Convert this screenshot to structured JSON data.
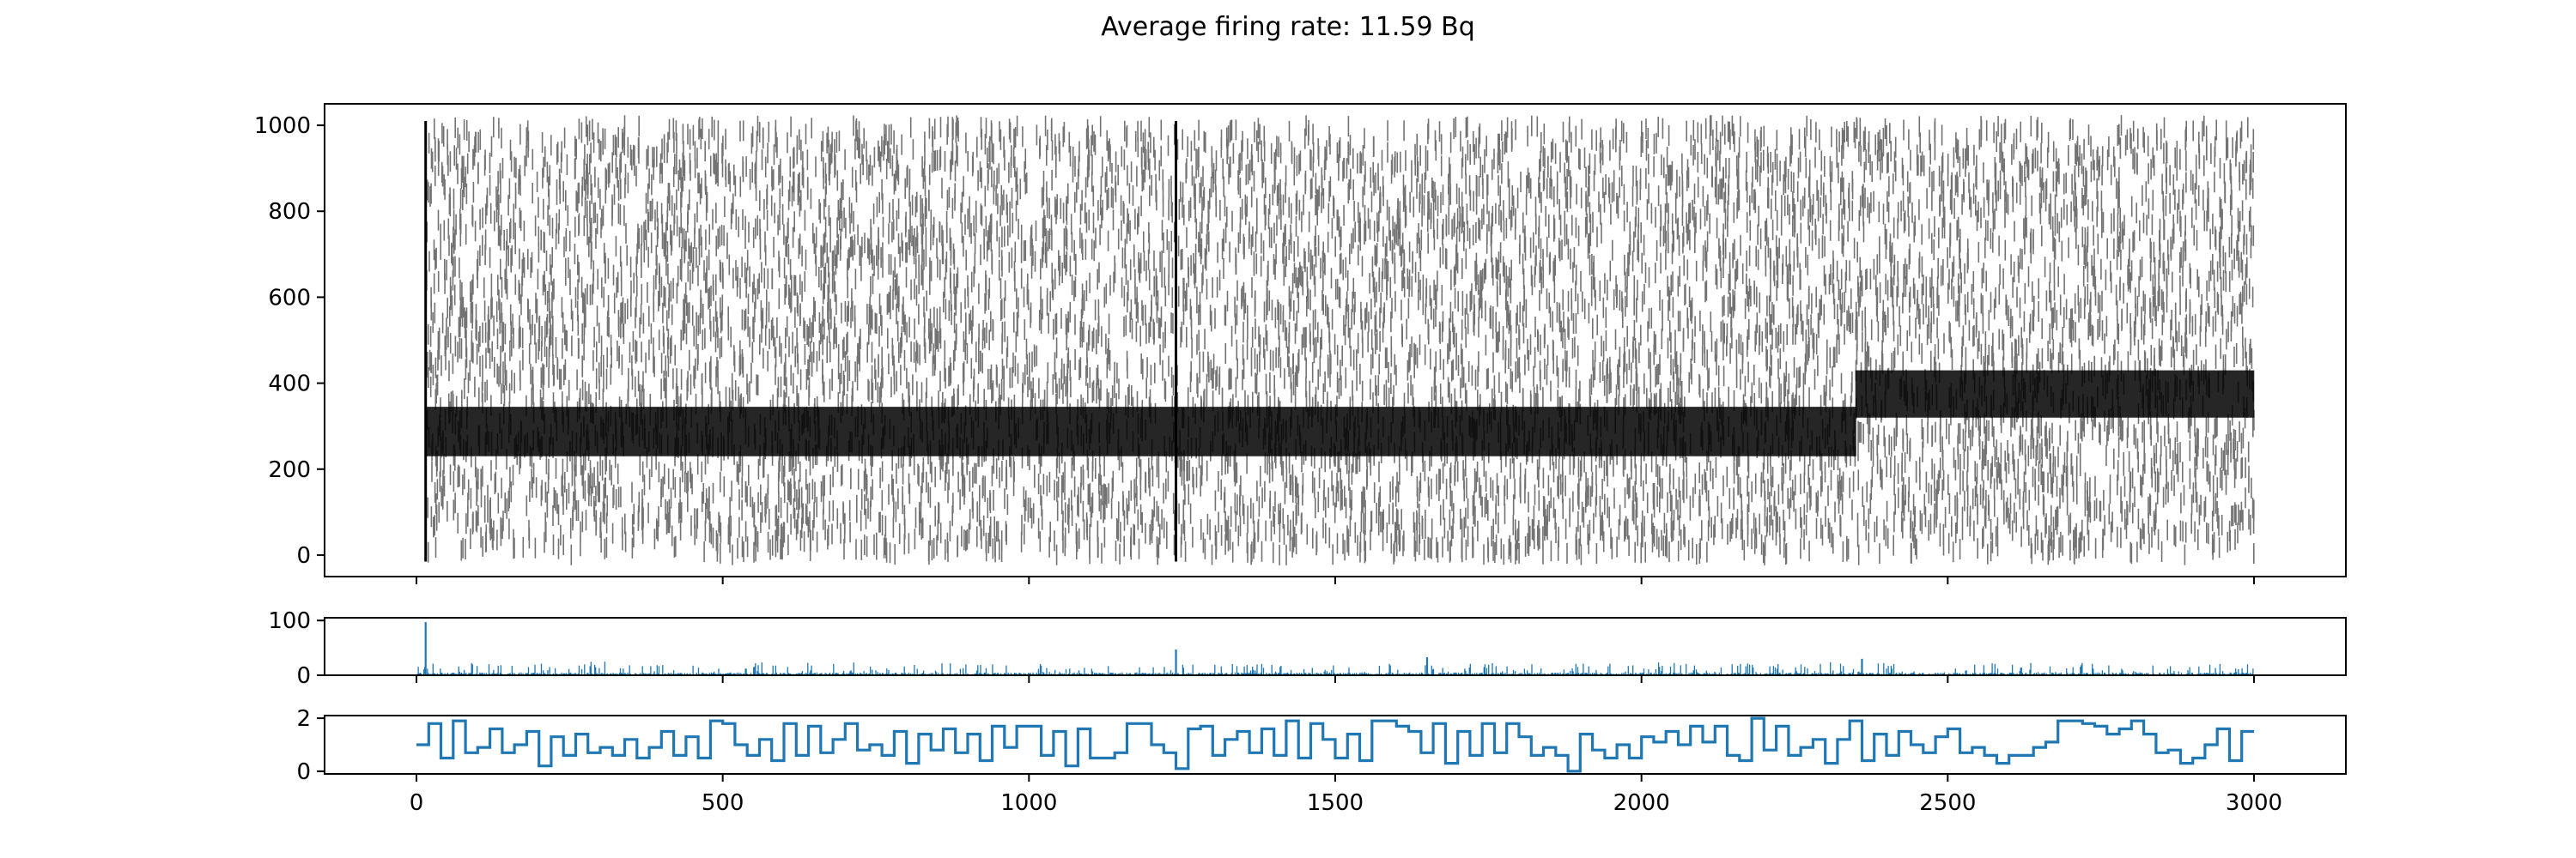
{
  "title": "Average firing rate: 11.59 Bq",
  "chart_data": [
    {
      "type": "scatter",
      "name": "raster",
      "xlim": [
        -150,
        3150
      ],
      "ylim": [
        -50,
        1050
      ],
      "yticks": [
        0,
        200,
        400,
        600,
        800,
        1000
      ],
      "xticks": [
        0,
        500,
        1000,
        1500,
        2000,
        2500,
        3000
      ],
      "xtick_labels_shown": false,
      "marker": "vertical-line",
      "color": "#000000",
      "grid": false,
      "n_neurons": 1000,
      "x_range": [
        0,
        3000
      ],
      "bands": [
        {
          "x": [
            15,
            2350
          ],
          "y": [
            230,
            345
          ]
        },
        {
          "x": [
            2350,
            3000
          ],
          "y": [
            320,
            430
          ]
        }
      ],
      "vertical_bursts_x": [
        15,
        1240
      ]
    },
    {
      "type": "bar",
      "name": "population-count",
      "xlim": [
        -150,
        3150
      ],
      "ylim": [
        0,
        105
      ],
      "yticks": [
        0,
        100
      ],
      "xticks": [
        0,
        500,
        1000,
        1500,
        2000,
        2500,
        3000
      ],
      "xtick_labels_shown": false,
      "color": "#1f77b4",
      "grid": false,
      "peaks": [
        {
          "x": 15,
          "y": 97
        },
        {
          "x": 1240,
          "y": 47
        },
        {
          "x": 1650,
          "y": 33
        },
        {
          "x": 2360,
          "y": 30
        }
      ],
      "baseline_range": [
        5,
        20
      ]
    },
    {
      "type": "line",
      "name": "rate-step",
      "drawstyle": "steps-post",
      "xlim": [
        -150,
        3150
      ],
      "ylim": [
        -0.1,
        2.1
      ],
      "yticks": [
        0,
        2
      ],
      "xticks": [
        0,
        500,
        1000,
        1500,
        2000,
        2500,
        3000
      ],
      "color": "#1f77b4",
      "grid": false,
      "x": [
        0,
        20,
        40,
        60,
        80,
        100,
        120,
        140,
        160,
        180,
        200,
        220,
        240,
        260,
        280,
        300,
        320,
        340,
        360,
        380,
        400,
        420,
        440,
        460,
        480,
        500,
        520,
        540,
        560,
        580,
        600,
        620,
        640,
        660,
        680,
        700,
        720,
        740,
        760,
        780,
        800,
        820,
        840,
        860,
        880,
        900,
        920,
        940,
        960,
        980,
        1000,
        1020,
        1040,
        1060,
        1080,
        1100,
        1120,
        1140,
        1160,
        1180,
        1200,
        1220,
        1240,
        1260,
        1280,
        1300,
        1320,
        1340,
        1360,
        1380,
        1400,
        1420,
        1440,
        1460,
        1480,
        1500,
        1520,
        1540,
        1560,
        1580,
        1600,
        1620,
        1640,
        1660,
        1680,
        1700,
        1720,
        1740,
        1760,
        1780,
        1800,
        1820,
        1840,
        1860,
        1880,
        1900,
        1920,
        1940,
        1960,
        1980,
        2000,
        2020,
        2040,
        2060,
        2080,
        2100,
        2120,
        2140,
        2160,
        2180,
        2200,
        2220,
        2240,
        2260,
        2280,
        2300,
        2320,
        2340,
        2360,
        2380,
        2400,
        2420,
        2440,
        2460,
        2480,
        2500,
        2520,
        2540,
        2560,
        2580,
        2600,
        2620,
        2640,
        2660,
        2680,
        2700,
        2720,
        2740,
        2760,
        2780,
        2800,
        2820,
        2840,
        2860,
        2880,
        2900,
        2920,
        2940,
        2960,
        2980,
        3000
      ],
      "values": [
        1.0,
        1.8,
        0.5,
        1.9,
        0.7,
        0.9,
        1.6,
        0.7,
        1.0,
        1.5,
        0.2,
        1.3,
        0.6,
        1.4,
        0.7,
        0.9,
        0.6,
        1.2,
        0.5,
        0.9,
        1.5,
        0.6,
        1.3,
        0.5,
        1.9,
        1.8,
        1.0,
        0.6,
        1.2,
        0.4,
        1.8,
        0.6,
        1.7,
        0.7,
        1.2,
        1.8,
        0.8,
        1.0,
        0.6,
        1.5,
        0.3,
        1.4,
        0.8,
        1.6,
        0.7,
        1.4,
        0.4,
        1.7,
        0.9,
        1.7,
        1.7,
        0.6,
        1.5,
        0.2,
        1.6,
        0.5,
        0.5,
        0.7,
        1.8,
        1.8,
        1.0,
        0.7,
        0.1,
        1.6,
        1.7,
        0.6,
        1.2,
        1.5,
        0.7,
        1.6,
        0.6,
        1.9,
        0.5,
        1.8,
        1.2,
        0.5,
        1.4,
        0.4,
        1.9,
        1.9,
        1.7,
        1.5,
        0.7,
        1.8,
        0.3,
        1.5,
        0.6,
        1.8,
        0.7,
        1.8,
        1.3,
        0.6,
        0.9,
        0.6,
        0.0,
        1.4,
        0.8,
        0.5,
        1.0,
        0.5,
        1.3,
        1.1,
        1.5,
        1.0,
        1.7,
        1.1,
        1.7,
        0.6,
        0.4,
        2.0,
        0.8,
        1.7,
        0.6,
        0.9,
        1.2,
        0.3,
        1.2,
        1.9,
        0.4,
        1.4,
        0.6,
        1.5,
        1.0,
        0.7,
        1.3,
        1.6,
        0.7,
        0.9,
        0.6,
        0.3,
        0.6,
        0.6,
        0.9,
        1.1,
        1.9,
        1.9,
        1.8,
        1.7,
        1.4,
        1.6,
        1.9,
        1.4,
        0.7,
        0.8,
        0.3,
        0.5,
        1.0,
        1.6,
        0.4,
        1.5,
        0.3
      ]
    }
  ]
}
